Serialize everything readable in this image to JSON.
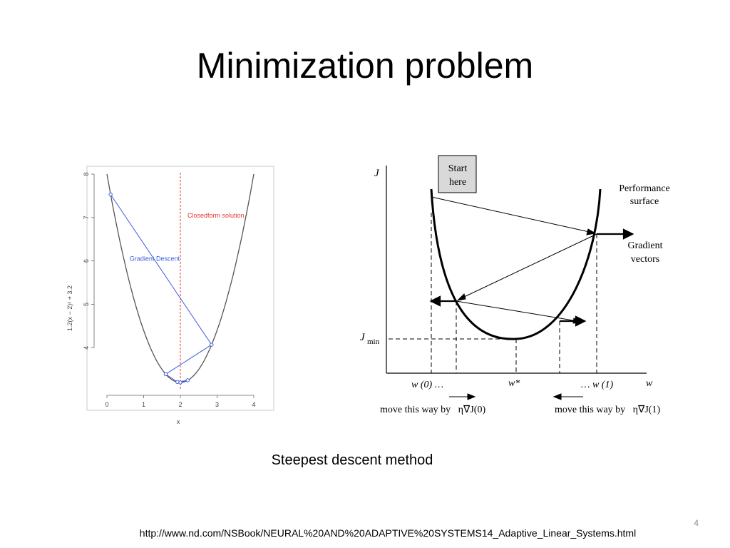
{
  "slide": {
    "title": "Minimization problem",
    "caption": "Steepest descent method",
    "page_number": "4",
    "footer_url": "http://www.nd.com/NSBook/NEURAL%20AND%20ADAPTIVE%20SYSTEMS14_Adaptive_Linear_Systems.html"
  },
  "chart_data": {
    "type": "line",
    "xlabel": "x",
    "ylabel": "1.2(x − 2)² + 3.2",
    "xlim": [
      0,
      4
    ],
    "ylim": [
      3.2,
      8
    ],
    "x_ticks": [
      "0",
      "1",
      "2",
      "3",
      "4"
    ],
    "y_ticks": [
      "4",
      "5",
      "6",
      "7",
      "8"
    ],
    "curve": {
      "function": "1.2(x-2)^2 + 3.2",
      "x_range": [
        0,
        4
      ]
    },
    "closedform_line": {
      "x": 2,
      "label": "Closedform solution",
      "color": "#e53935"
    },
    "gradient_descent": {
      "label": "Gradient Descent",
      "color": "#3b5bdb",
      "points": [
        {
          "x": 0.1,
          "y": 7.53
        },
        {
          "x": 2.85,
          "y": 4.07
        },
        {
          "x": 1.6,
          "y": 3.39
        },
        {
          "x": 1.92,
          "y": 3.21
        },
        {
          "x": 2.2,
          "y": 3.25
        },
        {
          "x": 2.0,
          "y": 3.2
        }
      ]
    }
  },
  "diagram": {
    "start_box": [
      "Start",
      "here"
    ],
    "axis_j": "J",
    "axis_w": "w",
    "jmin_j": "J",
    "jmin_sub": "min",
    "performance_label": [
      "Performance",
      "surface"
    ],
    "gradient_label": [
      "Gradient",
      "vectors"
    ],
    "w0_label": "w (0) …",
    "wstar_label": "w*",
    "w1_label": "… w (1)",
    "move_left": "move this way by   η∇J(0)",
    "move_right": "move this way by   η∇J(1)"
  }
}
